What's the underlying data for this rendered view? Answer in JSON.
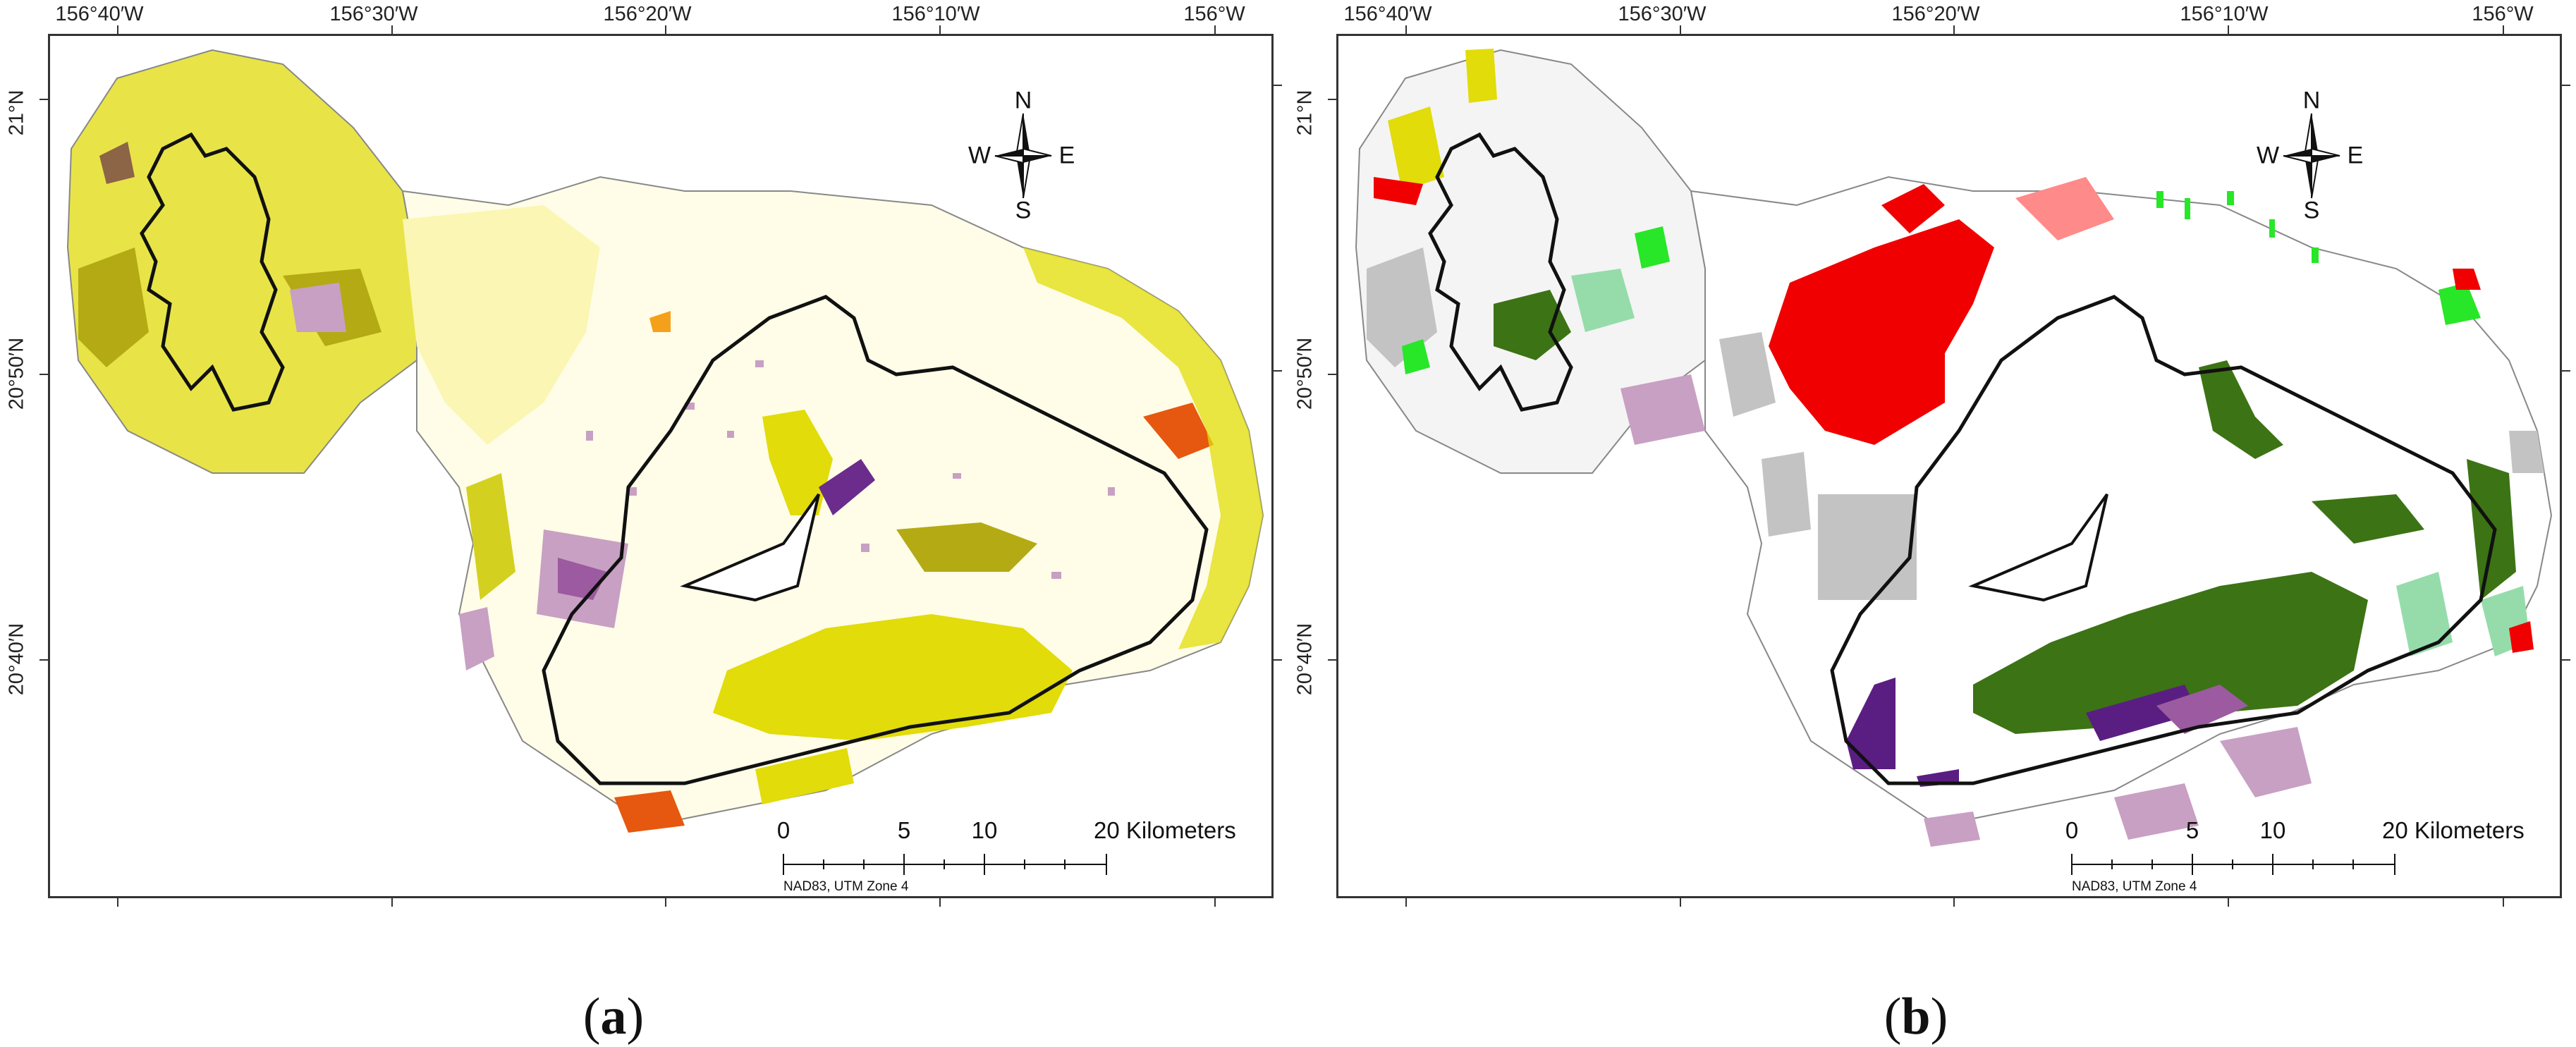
{
  "panels": [
    {
      "id": "a",
      "label": "(a)",
      "label_letter": "a",
      "lon_labels": [
        "156°40′W",
        "156°30′W",
        "156°20′W",
        "156°10′W",
        "156°W"
      ],
      "lat_labels": [
        "21°N",
        "20°50′N",
        "20°40′N"
      ],
      "north_arrow": {
        "n": "N",
        "s": "S",
        "e": "E",
        "w": "W"
      },
      "scale": {
        "ticks": [
          "0",
          "5",
          "10",
          "20 Kilometers"
        ],
        "projection": "NAD83, UTM Zone 4"
      },
      "palette": {
        "yellow": "#e1dc0a",
        "olive": "#b4aa14",
        "pale_yellow": "#fbf6b4",
        "lilac": "#c8a0c3",
        "purple": "#6b2c8c",
        "orange": "#e6580f",
        "brown": "#8c6446",
        "outline": "#111111"
      }
    },
    {
      "id": "b",
      "label": "(b)",
      "label_letter": "b",
      "lon_labels": [
        "156°40′W",
        "156°30′W",
        "156°20′W",
        "156°10′W",
        "156°W"
      ],
      "lat_labels": [
        "21°N",
        "20°50′N",
        "20°40′N"
      ],
      "north_arrow": {
        "n": "N",
        "s": "S",
        "e": "E",
        "w": "W"
      },
      "scale": {
        "ticks": [
          "0",
          "5",
          "10",
          "20 Kilometers"
        ],
        "projection": "NAD83, UTM Zone 4"
      },
      "palette": {
        "dark_green": "#3c7314",
        "red": "#f00000",
        "grey": "#c3c3c3",
        "lilac": "#c8a0c3",
        "purple": "#5a1e82",
        "bright_green": "#28e628",
        "mint": "#96dcaa",
        "yellow": "#e1dc0a",
        "outline": "#111111"
      }
    }
  ]
}
